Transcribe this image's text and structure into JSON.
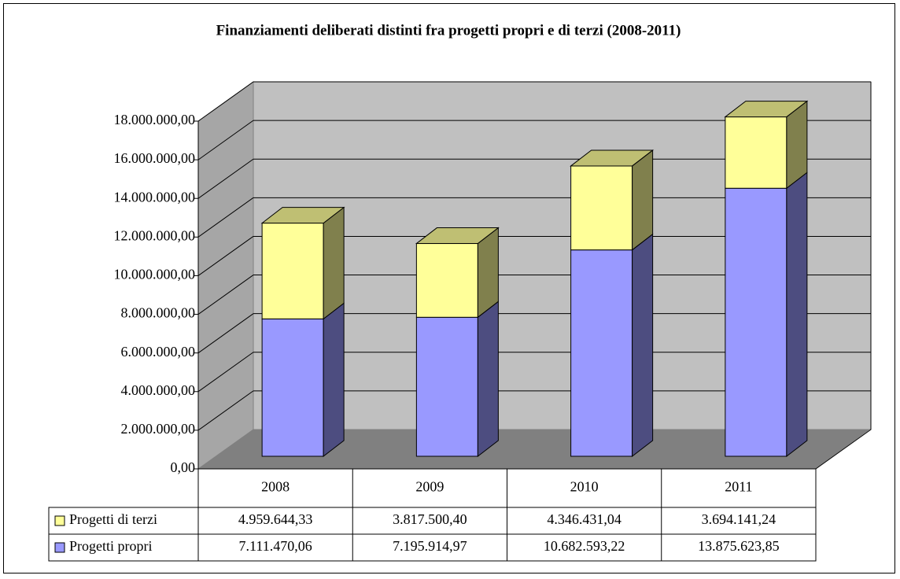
{
  "chart_data": {
    "type": "bar3d_stacked",
    "title": "Finanziamenti deliberati distinti fra progetti propri e di terzi (2008-2011)",
    "categories": [
      "2008",
      "2009",
      "2010",
      "2011"
    ],
    "series": [
      {
        "name": "Progetti di terzi",
        "color": "#ffff99",
        "values": [
          4959644.33,
          3817500.4,
          4346431.04,
          3694141.24
        ],
        "value_labels": [
          "4.959.644,33",
          "3.817.500,40",
          "4.346.431,04",
          "3.694.141,24"
        ]
      },
      {
        "name": "Progetti propri",
        "color": "#9999ff",
        "values": [
          7111470.06,
          7195914.97,
          10682593.22,
          13875623.85
        ],
        "value_labels": [
          "7.111.470,06",
          "7.195.914,97",
          "10.682.593,22",
          "13.875.623,85"
        ]
      }
    ],
    "ylim": [
      0,
      18000000
    ],
    "yticks": [
      {
        "value": 0,
        "label": "0,00"
      },
      {
        "value": 2000000,
        "label": "2.000.000,00"
      },
      {
        "value": 4000000,
        "label": "4.000.000,00"
      },
      {
        "value": 6000000,
        "label": "6.000.000,00"
      },
      {
        "value": 8000000,
        "label": "8.000.000,00"
      },
      {
        "value": 10000000,
        "label": "10.000.000,00"
      },
      {
        "value": 12000000,
        "label": "12.000.000,00"
      },
      {
        "value": 14000000,
        "label": "14.000.000,00"
      },
      {
        "value": 16000000,
        "label": "16.000.000,00"
      },
      {
        "value": 18000000,
        "label": "18.000.000,00"
      }
    ],
    "grid": true
  }
}
